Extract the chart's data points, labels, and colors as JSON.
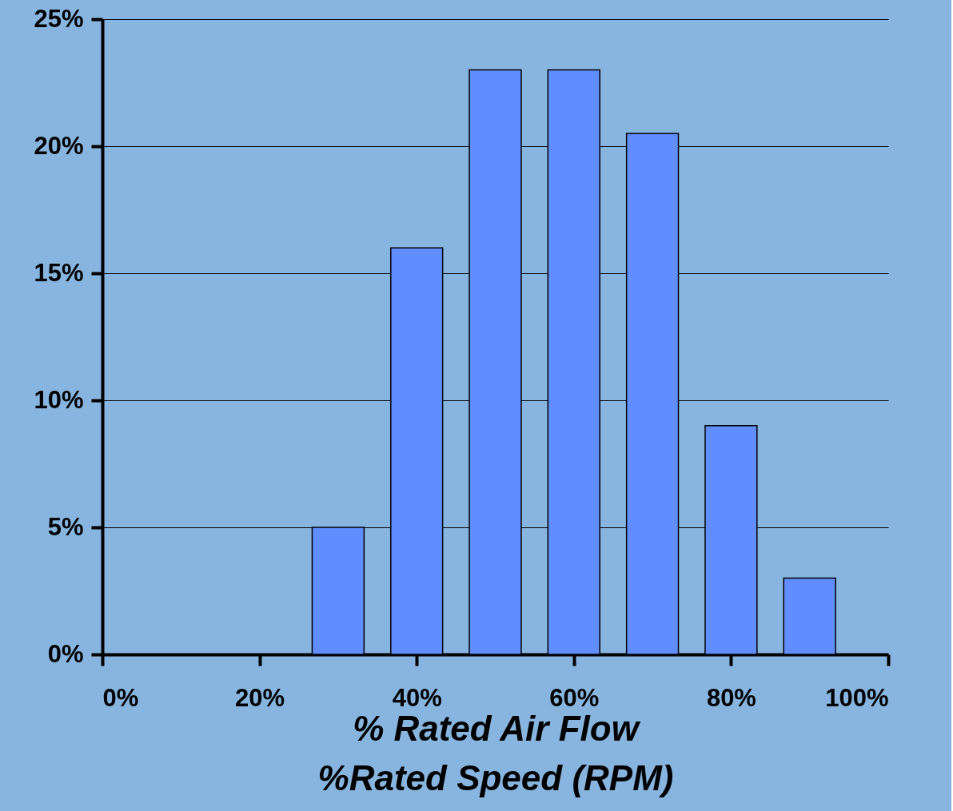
{
  "chart_data": {
    "type": "bar",
    "x": [
      30,
      40,
      50,
      60,
      70,
      80,
      90
    ],
    "values": [
      5,
      16,
      23,
      23,
      20.5,
      9,
      3
    ],
    "color": "#608eff",
    "xlabel": "% Rated Air Flow\n%Rated Speed (RPM)",
    "xlim": [
      0,
      100
    ],
    "xticks": [
      {
        "value": 0,
        "label": "0%"
      },
      {
        "value": 20,
        "label": "20%"
      },
      {
        "value": 40,
        "label": "40%"
      },
      {
        "value": 60,
        "label": "60%"
      },
      {
        "value": 80,
        "label": "80%"
      },
      {
        "value": 100,
        "label": "100%"
      }
    ],
    "ylim": [
      0,
      25
    ],
    "yticks": [
      {
        "value": 0,
        "label": "0%"
      },
      {
        "value": 5,
        "label": "5%"
      },
      {
        "value": 10,
        "label": "10%"
      },
      {
        "value": 15,
        "label": "15%"
      },
      {
        "value": 20,
        "label": "20%"
      },
      {
        "value": 25,
        "label": "25%"
      }
    ],
    "grid": "y"
  }
}
